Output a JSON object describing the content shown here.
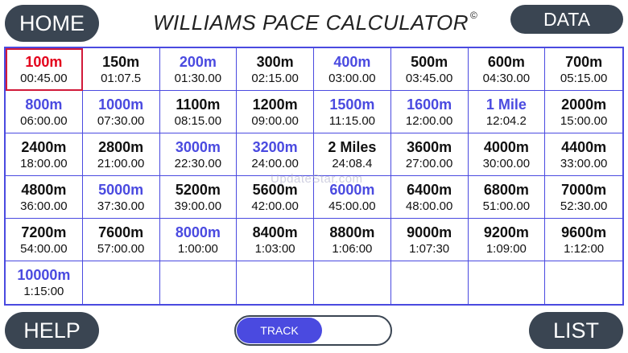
{
  "header": {
    "home_label": "HOME",
    "title": "WILLIAMS PACE CALCULATOR",
    "copyright": "©",
    "data_label": "DATA"
  },
  "colors": {
    "accent": "#4a4ae0",
    "selected": "#e3001b",
    "button": "#3a4552"
  },
  "cells": [
    {
      "distance": "100m",
      "time": "00:45.00",
      "style": "selected"
    },
    {
      "distance": "150m",
      "time": "01:07.5",
      "style": "normal"
    },
    {
      "distance": "200m",
      "time": "01:30.00",
      "style": "highlight"
    },
    {
      "distance": "300m",
      "time": "02:15.00",
      "style": "normal"
    },
    {
      "distance": "400m",
      "time": "03:00.00",
      "style": "highlight"
    },
    {
      "distance": "500m",
      "time": "03:45.00",
      "style": "normal"
    },
    {
      "distance": "600m",
      "time": "04:30.00",
      "style": "normal"
    },
    {
      "distance": "700m",
      "time": "05:15.00",
      "style": "normal"
    },
    {
      "distance": "800m",
      "time": "06:00.00",
      "style": "highlight"
    },
    {
      "distance": "1000m",
      "time": "07:30.00",
      "style": "highlight"
    },
    {
      "distance": "1100m",
      "time": "08:15.00",
      "style": "normal"
    },
    {
      "distance": "1200m",
      "time": "09:00.00",
      "style": "normal"
    },
    {
      "distance": "1500m",
      "time": "11:15.00",
      "style": "highlight"
    },
    {
      "distance": "1600m",
      "time": "12:00.00",
      "style": "highlight"
    },
    {
      "distance": "1 Mile",
      "time": "12:04.2",
      "style": "highlight"
    },
    {
      "distance": "2000m",
      "time": "15:00.00",
      "style": "normal"
    },
    {
      "distance": "2400m",
      "time": "18:00.00",
      "style": "normal"
    },
    {
      "distance": "2800m",
      "time": "21:00.00",
      "style": "normal"
    },
    {
      "distance": "3000m",
      "time": "22:30.00",
      "style": "highlight"
    },
    {
      "distance": "3200m",
      "time": "24:00.00",
      "style": "highlight"
    },
    {
      "distance": "2 Miles",
      "time": "24:08.4",
      "style": "normal"
    },
    {
      "distance": "3600m",
      "time": "27:00.00",
      "style": "normal"
    },
    {
      "distance": "4000m",
      "time": "30:00.00",
      "style": "normal"
    },
    {
      "distance": "4400m",
      "time": "33:00.00",
      "style": "normal"
    },
    {
      "distance": "4800m",
      "time": "36:00.00",
      "style": "normal"
    },
    {
      "distance": "5000m",
      "time": "37:30.00",
      "style": "highlight"
    },
    {
      "distance": "5200m",
      "time": "39:00.00",
      "style": "normal"
    },
    {
      "distance": "5600m",
      "time": "42:00.00",
      "style": "normal"
    },
    {
      "distance": "6000m",
      "time": "45:00.00",
      "style": "highlight"
    },
    {
      "distance": "6400m",
      "time": "48:00.00",
      "style": "normal"
    },
    {
      "distance": "6800m",
      "time": "51:00.00",
      "style": "normal"
    },
    {
      "distance": "7000m",
      "time": "52:30.00",
      "style": "normal"
    },
    {
      "distance": "7200m",
      "time": "54:00.00",
      "style": "normal"
    },
    {
      "distance": "7600m",
      "time": "57:00.00",
      "style": "normal"
    },
    {
      "distance": "8000m",
      "time": "1:00:00",
      "style": "highlight"
    },
    {
      "distance": "8400m",
      "time": "1:03:00",
      "style": "normal"
    },
    {
      "distance": "8800m",
      "time": "1:06:00",
      "style": "normal"
    },
    {
      "distance": "9000m",
      "time": "1:07:30",
      "style": "normal"
    },
    {
      "distance": "9200m",
      "time": "1:09:00",
      "style": "normal"
    },
    {
      "distance": "9600m",
      "time": "1:12:00",
      "style": "normal"
    },
    {
      "distance": "10000m",
      "time": "1:15:00",
      "style": "highlight"
    },
    {
      "distance": "",
      "time": "",
      "style": "empty"
    },
    {
      "distance": "",
      "time": "",
      "style": "empty"
    },
    {
      "distance": "",
      "time": "",
      "style": "empty"
    },
    {
      "distance": "",
      "time": "",
      "style": "empty"
    },
    {
      "distance": "",
      "time": "",
      "style": "empty"
    },
    {
      "distance": "",
      "time": "",
      "style": "empty"
    },
    {
      "distance": "",
      "time": "",
      "style": "empty"
    }
  ],
  "watermark": "UpdateStar.com",
  "footer": {
    "help_label": "HELP",
    "toggle_label": "TRACK",
    "list_label": "LIST"
  }
}
